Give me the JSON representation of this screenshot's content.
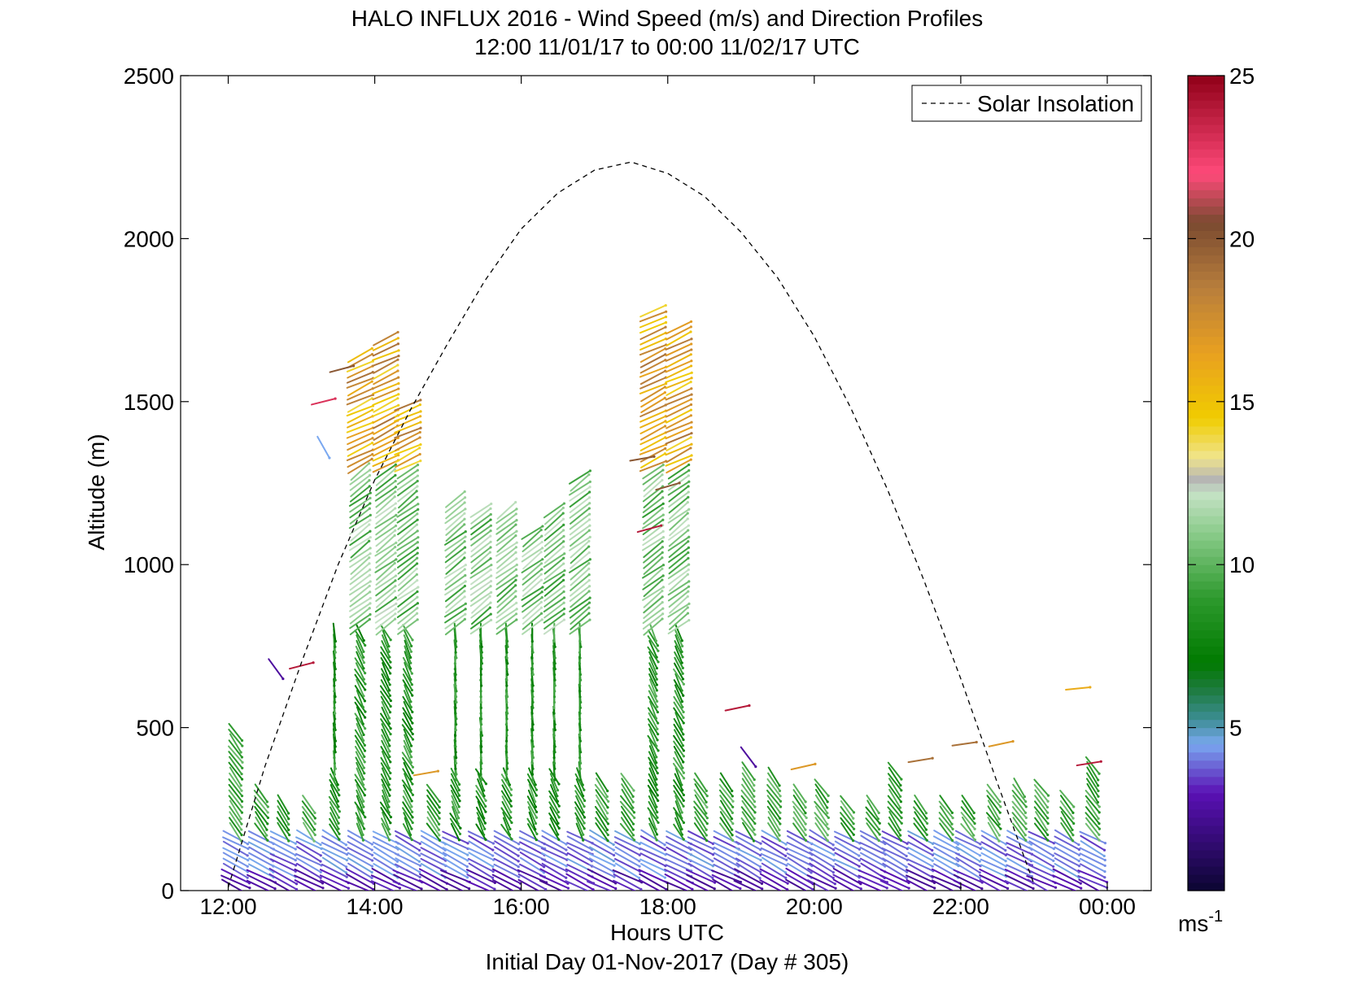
{
  "title_line1": "HALO INFLUX 2016 - Wind Speed (m/s) and Direction Profiles",
  "title_line2": "12:00 11/01/17 to 00:00 11/02/17  UTC",
  "xlabel": "Hours UTC",
  "footer": "Initial Day 01-Nov-2017 (Day # 305)",
  "ylabel": "Altitude (m)",
  "legend_label": "Solar Insolation",
  "colorbar_unit": "ms",
  "colorbar_unit_exp": "-1",
  "chart_data": {
    "type": "scatter",
    "subtype": "wind-barb profiles",
    "x_unit": "hours UTC",
    "xlim": [
      11.35,
      24.6
    ],
    "ylim": [
      0,
      2500
    ],
    "x_ticks": [
      12,
      14,
      16,
      18,
      20,
      22,
      24
    ],
    "x_tick_labels": [
      "12:00",
      "14:00",
      "16:00",
      "18:00",
      "20:00",
      "22:00",
      "00:00"
    ],
    "y_ticks": [
      0,
      500,
      1000,
      1500,
      2000,
      2500
    ],
    "y_tick_labels": [
      "0",
      "500",
      "1000",
      "1500",
      "2000",
      "2500"
    ],
    "colorbar": {
      "range": [
        0,
        25
      ],
      "ticks": [
        5,
        10,
        15,
        20,
        25
      ],
      "tick_labels": [
        "5",
        "10",
        "15",
        "20",
        "25"
      ]
    },
    "colormap_stops": [
      {
        "v": 0,
        "color": "#0b0630"
      },
      {
        "v": 3,
        "color": "#5a10b4"
      },
      {
        "v": 4.5,
        "color": "#7aa8f0"
      },
      {
        "v": 5.3,
        "color": "#3a8c90"
      },
      {
        "v": 6.2,
        "color": "#1d7a3c"
      },
      {
        "v": 7,
        "color": "#007a00"
      },
      {
        "v": 9,
        "color": "#2e9a2e"
      },
      {
        "v": 11,
        "color": "#8ccc8c"
      },
      {
        "v": 12.2,
        "color": "#c6e2c6"
      },
      {
        "v": 12.6,
        "color": "#b4b4b4"
      },
      {
        "v": 13.3,
        "color": "#f0e48c"
      },
      {
        "v": 14.5,
        "color": "#f0cc00"
      },
      {
        "v": 16.5,
        "color": "#e8a020"
      },
      {
        "v": 18.5,
        "color": "#b87e3c"
      },
      {
        "v": 20.5,
        "color": "#7a4a30"
      },
      {
        "v": 22,
        "color": "#ff4a7a"
      },
      {
        "v": 25,
        "color": "#900018"
      }
    ],
    "solar_insolation": {
      "style": "dashed",
      "x": [
        12.0,
        12.5,
        13.0,
        13.5,
        14.0,
        14.5,
        15.0,
        15.5,
        16.0,
        16.5,
        17.0,
        17.5,
        18.0,
        18.5,
        19.0,
        19.5,
        20.0,
        20.5,
        21.0,
        21.5,
        22.0,
        22.5,
        23.0
      ],
      "y": [
        10,
        380,
        700,
        1000,
        1260,
        1480,
        1680,
        1870,
        2030,
        2140,
        2210,
        2235,
        2200,
        2130,
        2020,
        1880,
        1700,
        1480,
        1230,
        950,
        650,
        330,
        20
      ]
    },
    "profiles": [
      {
        "x": 12.1,
        "top": 490,
        "regime": "low"
      },
      {
        "x": 12.45,
        "top": 300,
        "regime": "low"
      },
      {
        "x": 12.75,
        "top": 280,
        "regime": "low"
      },
      {
        "x": 13.1,
        "top": 280,
        "regime": "low"
      },
      {
        "x": 13.45,
        "top": 800,
        "regime": "mid"
      },
      {
        "x": 13.8,
        "top": 1650,
        "regime": "high"
      },
      {
        "x": 14.15,
        "top": 1700,
        "regime": "high"
      },
      {
        "x": 14.45,
        "top": 1500,
        "regime": "high"
      },
      {
        "x": 14.8,
        "top": 300,
        "regime": "low"
      },
      {
        "x": 15.1,
        "top": 1200,
        "regime": "mid"
      },
      {
        "x": 15.45,
        "top": 1170,
        "regime": "mid"
      },
      {
        "x": 15.8,
        "top": 1170,
        "regime": "mid"
      },
      {
        "x": 16.15,
        "top": 1100,
        "regime": "mid"
      },
      {
        "x": 16.45,
        "top": 1180,
        "regime": "mid"
      },
      {
        "x": 16.8,
        "top": 1280,
        "regime": "mid"
      },
      {
        "x": 17.1,
        "top": 340,
        "regime": "low"
      },
      {
        "x": 17.45,
        "top": 340,
        "regime": "low"
      },
      {
        "x": 17.8,
        "top": 1780,
        "regime": "high"
      },
      {
        "x": 18.15,
        "top": 1740,
        "regime": "high"
      },
      {
        "x": 18.45,
        "top": 340,
        "regime": "low"
      },
      {
        "x": 18.8,
        "top": 340,
        "regime": "low"
      },
      {
        "x": 19.1,
        "top": 370,
        "regime": "low"
      },
      {
        "x": 19.45,
        "top": 360,
        "regime": "low"
      },
      {
        "x": 19.8,
        "top": 300,
        "regime": "low"
      },
      {
        "x": 20.1,
        "top": 320,
        "regime": "low"
      },
      {
        "x": 20.45,
        "top": 280,
        "regime": "low"
      },
      {
        "x": 20.8,
        "top": 280,
        "regime": "low"
      },
      {
        "x": 21.1,
        "top": 370,
        "regime": "low"
      },
      {
        "x": 21.45,
        "top": 280,
        "regime": "low"
      },
      {
        "x": 21.8,
        "top": 280,
        "regime": "low"
      },
      {
        "x": 22.1,
        "top": 280,
        "regime": "low"
      },
      {
        "x": 22.45,
        "top": 300,
        "regime": "low"
      },
      {
        "x": 22.8,
        "top": 330,
        "regime": "low"
      },
      {
        "x": 23.1,
        "top": 330,
        "regime": "low"
      },
      {
        "x": 23.45,
        "top": 290,
        "regime": "low"
      },
      {
        "x": 23.8,
        "top": 400,
        "regime": "low"
      }
    ],
    "isolated_barbs": [
      {
        "x": 12.65,
        "y": 680,
        "speed": 2.5
      },
      {
        "x": 13.0,
        "y": 690,
        "speed": 24
      },
      {
        "x": 13.3,
        "y": 1360,
        "speed": 4.5
      },
      {
        "x": 13.3,
        "y": 1500,
        "speed": 23
      },
      {
        "x": 13.55,
        "y": 1600,
        "speed": 20
      },
      {
        "x": 14.7,
        "y": 360,
        "speed": 17
      },
      {
        "x": 17.65,
        "y": 1325,
        "speed": 20
      },
      {
        "x": 17.75,
        "y": 1110,
        "speed": 24
      },
      {
        "x": 18.0,
        "y": 1240,
        "speed": 20
      },
      {
        "x": 18.95,
        "y": 560,
        "speed": 24
      },
      {
        "x": 19.1,
        "y": 410,
        "speed": 2.5
      },
      {
        "x": 19.85,
        "y": 380,
        "speed": 17
      },
      {
        "x": 21.45,
        "y": 400,
        "speed": 19
      },
      {
        "x": 22.05,
        "y": 450,
        "speed": 19
      },
      {
        "x": 22.55,
        "y": 450,
        "speed": 17
      },
      {
        "x": 23.6,
        "y": 620,
        "speed": 16
      },
      {
        "x": 23.75,
        "y": 390,
        "speed": 24
      }
    ]
  }
}
